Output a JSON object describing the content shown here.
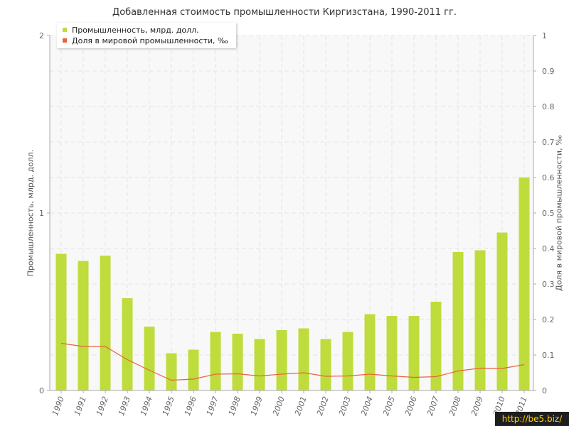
{
  "chart_data": {
    "type": "bar",
    "title": "Добавленная стоимость промышленности Киргизстана, 1990-2011 гг.",
    "categories": [
      "1990",
      "1991",
      "1992",
      "1993",
      "1994",
      "1995",
      "1996",
      "1997",
      "1998",
      "1999",
      "2000",
      "2001",
      "2002",
      "2003",
      "2004",
      "2005",
      "2006",
      "2007",
      "2008",
      "2009",
      "2010",
      "2011"
    ],
    "series": [
      {
        "name": "Промышленность, млрд. долл.",
        "type": "bar",
        "axis": "left",
        "color": "#bedc3c",
        "values": [
          0.77,
          0.73,
          0.76,
          0.52,
          0.36,
          0.21,
          0.23,
          0.33,
          0.32,
          0.29,
          0.34,
          0.35,
          0.29,
          0.33,
          0.43,
          0.42,
          0.42,
          0.5,
          0.78,
          0.79,
          0.89,
          1.2
        ]
      },
      {
        "name": "Доля в мировой промышленности, ‰",
        "type": "line",
        "axis": "right",
        "color": "#e8643c",
        "values": [
          0.133,
          0.124,
          0.124,
          0.087,
          0.057,
          0.029,
          0.032,
          0.046,
          0.047,
          0.041,
          0.046,
          0.05,
          0.04,
          0.041,
          0.046,
          0.041,
          0.037,
          0.039,
          0.055,
          0.063,
          0.062,
          0.073
        ]
      }
    ],
    "y_left": {
      "label": "Промышленность, млрд. долл.",
      "min": 0,
      "max": 2,
      "ticks": [
        "0",
        "1",
        "2"
      ]
    },
    "y_right": {
      "label": "Доля в мировой промышленности, ‰",
      "min": 0,
      "max": 1,
      "ticks": [
        "0",
        "0.1",
        "0.2",
        "0.3",
        "0.4",
        "0.5",
        "0.6",
        "0.7",
        "0.8",
        "0.9",
        "1"
      ]
    },
    "grid": true,
    "legend_position": "top-left",
    "background_color": "#f8f8f8",
    "gridline_color": "#e4e4e4"
  },
  "watermark": "http://be5.biz/"
}
